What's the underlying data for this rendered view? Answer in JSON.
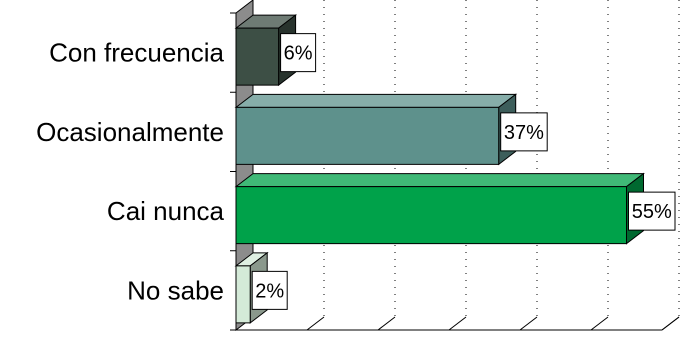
{
  "chart_data": {
    "type": "bar",
    "orientation": "horizontal",
    "style": "3d",
    "categories": [
      "Con frecuencia",
      "Ocasionalmente",
      "Cai nunca",
      "No sabe"
    ],
    "values": [
      6,
      37,
      55,
      2
    ],
    "value_labels": [
      "6%",
      "37%",
      "55%",
      "2%"
    ],
    "colors": [
      "#3d4f45",
      "#5e918c",
      "#00a24a",
      "#d4ead8"
    ],
    "xlim": [
      0,
      60
    ],
    "grid": true,
    "legend": "none",
    "title": "",
    "xlabel": "",
    "ylabel": ""
  }
}
